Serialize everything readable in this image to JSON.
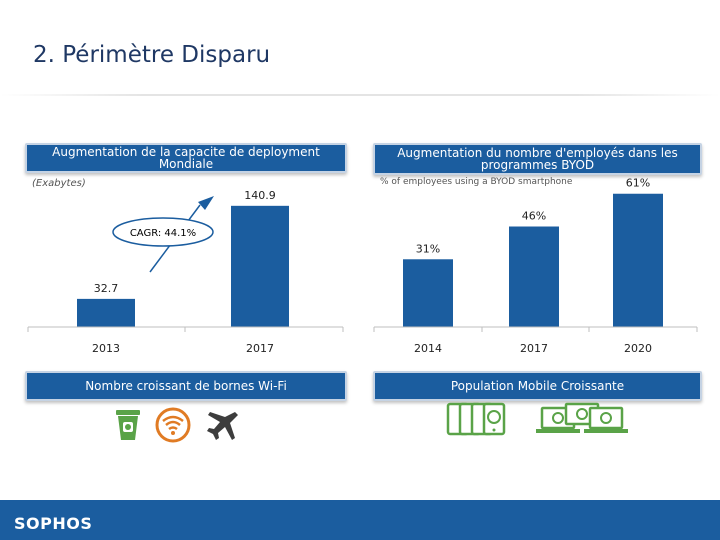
{
  "slide": {
    "title": "2. Périmètre Disparu",
    "footer_logo": "SOPHOS"
  },
  "banners": {
    "left_top": "Augmentation de la capacite de deployment Mondiale",
    "right_top": "Augmentation du nombre d'employés dans les programmes BYOD",
    "left_bottom": "Nombre croissant de bornes Wi-Fi",
    "right_bottom": "Population Mobile Croissante"
  },
  "colors": {
    "bar": "#1b5d9f",
    "banner": "#1b5d9f",
    "icon_green": "#5aa348",
    "icon_orange": "#e07b24",
    "icon_gray": "#3d3d3d"
  },
  "icons": {
    "wifi_row": [
      "coffee-cup-icon",
      "wifi-icon",
      "airplane-icon"
    ],
    "mobile_row": [
      "smartphones-icon",
      "laptops-icon"
    ]
  },
  "chart_data": [
    {
      "type": "bar",
      "categories": [
        "2013",
        "2017"
      ],
      "values": [
        32.7,
        140.9
      ],
      "value_labels": [
        "32.7",
        "140.9"
      ],
      "unit_note": "(Exabytes)",
      "annotation": "CAGR: 44.1%",
      "ylim": [
        0,
        150
      ],
      "grid": false
    },
    {
      "type": "bar",
      "categories": [
        "2014",
        "2017",
        "2020"
      ],
      "values": [
        31,
        46,
        61
      ],
      "value_labels": [
        "31%",
        "46%",
        "61%"
      ],
      "subtitle": "% of employees using a BYOD smartphone",
      "ylim": [
        0,
        65
      ],
      "grid": false
    }
  ]
}
